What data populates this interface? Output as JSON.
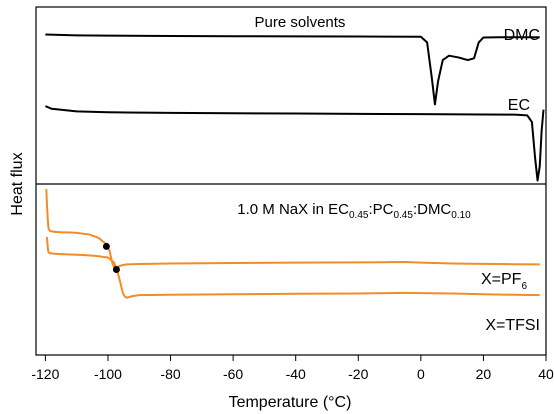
{
  "colors": {
    "top_panel": "#000000",
    "bottom_panel": "#f28c28",
    "axes": "#000000"
  },
  "ylabel": "Heat flux",
  "xlabel": "Temperature (°C)",
  "x_ticks": [
    "-120",
    "-100",
    "-80",
    "-60",
    "-40",
    "-20",
    "0",
    "20",
    "40"
  ],
  "top_panel": {
    "title": "Pure solvents",
    "label_dmc": "DMC",
    "label_ec": "EC"
  },
  "bottom_panel": {
    "title_main": "1.0 M NaX in EC",
    "title_sub1": "0.45",
    "title_sep1": ":PC",
    "title_sub2": "0.45",
    "title_sep2": ":DMC",
    "title_sub3": "0.10",
    "label_pf6_main": "X=PF",
    "label_pf6_sub": "6",
    "label_tfsi": "X=TFSI"
  },
  "chart_data": {
    "type": "line",
    "xlim": [
      -123,
      40
    ],
    "x_ticks": [
      -120,
      -100,
      -80,
      -60,
      -40,
      -20,
      0,
      20,
      40
    ],
    "ylabel": "Heat flux",
    "xlabel": "Temperature (°C)",
    "panels": [
      {
        "title": "Pure solvents",
        "ylim": [
          0,
          1
        ],
        "series": [
          {
            "name": "DMC",
            "color": "#000000",
            "x": [
              -120,
              -110,
              -100,
              -80,
              -60,
              -40,
              -20,
              0,
              2,
              3.5,
              4.5,
              5.5,
              7,
              9,
              12,
              15,
              17,
              18.5,
              20,
              25,
              30,
              38
            ],
            "y": [
              0.845,
              0.84,
              0.838,
              0.836,
              0.835,
              0.834,
              0.833,
              0.832,
              0.8,
              0.6,
              0.45,
              0.58,
              0.7,
              0.725,
              0.715,
              0.7,
              0.71,
              0.8,
              0.828,
              0.829,
              0.829,
              0.829
            ]
          },
          {
            "name": "EC",
            "color": "#000000",
            "x": [
              -120,
              -118,
              -110,
              -100,
              -80,
              -60,
              -40,
              -20,
              0,
              20,
              30,
              34,
              35.5,
              36.5,
              37.3,
              38,
              38.6,
              39.2
            ],
            "y": [
              0.44,
              0.425,
              0.41,
              0.405,
              0.402,
              0.4,
              0.398,
              0.396,
              0.395,
              0.393,
              0.392,
              0.388,
              0.35,
              0.15,
              0.02,
              0.1,
              0.3,
              0.42
            ]
          }
        ]
      },
      {
        "title": "1.0 M NaX in EC0.45:PC0.45:DMC0.10",
        "ylim": [
          0,
          1
        ],
        "series": [
          {
            "name": "X=PF6",
            "color": "#f28c28",
            "x": [
              -119.7,
              -119.5,
              -119.2,
              -119,
              -118.5,
              -117,
              -115,
              -112,
              -110,
              -106,
              -103,
              -101,
              -99.5,
              -98.5,
              -97.5,
              -97,
              -96.5,
              -95.5,
              -94,
              -90,
              -80,
              -60,
              -40,
              -20,
              -10,
              -5,
              0,
              10,
              20,
              30,
              38
            ],
            "y": [
              0.97,
              0.88,
              0.78,
              0.74,
              0.725,
              0.72,
              0.718,
              0.716,
              0.714,
              0.705,
              0.685,
              0.655,
              0.61,
              0.53,
              0.5,
              0.505,
              0.52,
              0.525,
              0.53,
              0.532,
              0.535,
              0.538,
              0.54,
              0.542,
              0.543,
              0.544,
              0.54,
              0.535,
              0.533,
              0.531,
              0.53
            ]
          },
          {
            "name": "X=TFSI",
            "color": "#f28c28",
            "x": [
              -119.5,
              -119.2,
              -119,
              -118.5,
              -117,
              -115,
              -112,
              -108,
              -104,
              -100,
              -98,
              -97,
              -96,
              -95.2,
              -94.5,
              -93.8,
              -93,
              -92,
              -90,
              -80,
              -60,
              -40,
              -20,
              -10,
              -5,
              0,
              10,
              20,
              30,
              38
            ],
            "y": [
              0.69,
              0.62,
              0.6,
              0.595,
              0.592,
              0.59,
              0.588,
              0.585,
              0.58,
              0.57,
              0.54,
              0.49,
              0.42,
              0.36,
              0.34,
              0.335,
              0.34,
              0.345,
              0.35,
              0.352,
              0.355,
              0.358,
              0.36,
              0.362,
              0.363,
              0.362,
              0.36,
              0.355,
              0.352,
              0.35
            ]
          }
        ],
        "markers": [
          {
            "series": "X=PF6",
            "x": -100.5,
            "y": 0.635
          },
          {
            "series": "X=TFSI",
            "x": -97.3,
            "y": 0.5
          }
        ]
      }
    ]
  }
}
